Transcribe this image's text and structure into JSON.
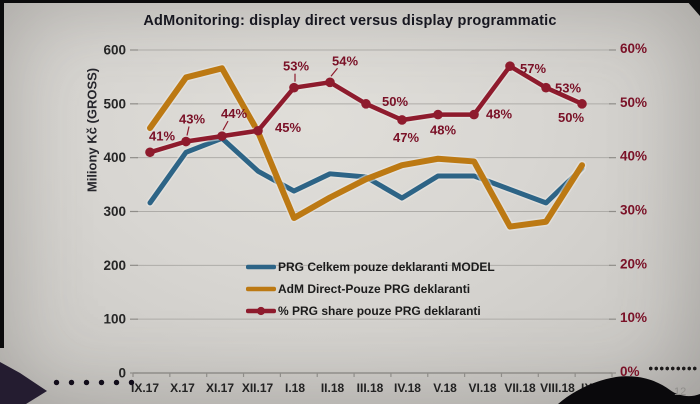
{
  "slide": {
    "title": "AdMonitoring: display direct versus display programmatic",
    "slide_number": "12"
  },
  "chart_data": {
    "type": "line",
    "title": "AdMonitoring: display direct versus display programmatic",
    "categories": [
      "IX.17",
      "X.17",
      "XI.17",
      "XII.17",
      "I.18",
      "II.18",
      "III.18",
      "IV.18",
      "V.18",
      "VI.18",
      "VII.18",
      "VIII.18",
      "IX.18"
    ],
    "grid": true,
    "legend_position": "inside-bottom-center",
    "y_axis_left": {
      "label": "Miliony Kč (GROSS)",
      "min": 0,
      "max": 600,
      "tick_step": 100,
      "ticks": [
        "0",
        "100",
        "200",
        "300",
        "400",
        "500",
        "600"
      ],
      "color": "#262626"
    },
    "y_axis_right": {
      "min": 0,
      "max": 60,
      "tick_step": 10,
      "ticks": [
        "0%",
        "10%",
        "20%",
        "30%",
        "40%",
        "50%",
        "60%"
      ],
      "color": "#7a1127"
    },
    "series": [
      {
        "name": "PRG Celkem pouze deklaranti MODEL",
        "axis": "left",
        "color": "#2d6486",
        "marker": false,
        "values": [
          316,
          410,
          436,
          375,
          338,
          370,
          364,
          325,
          366,
          366,
          341,
          316,
          380
        ]
      },
      {
        "name": "AdM Direct-Pouze PRG deklaranti",
        "axis": "left",
        "color": "#bc7913",
        "marker": false,
        "values": [
          455,
          549,
          566,
          448,
          288,
          326,
          360,
          386,
          398,
          393,
          272,
          281,
          386
        ]
      },
      {
        "name": "% PRG share pouze PRG deklaranti",
        "axis": "right",
        "color": "#8e1b2d",
        "marker": true,
        "values": [
          41,
          43,
          44,
          45,
          53,
          54,
          50,
          47,
          48,
          48,
          57,
          53,
          50
        ],
        "labels": [
          "41%",
          "43%",
          "44%",
          "45%",
          "53%",
          "54%",
          "50%",
          "47%",
          "48%",
          "48%",
          "57%",
          "53%",
          "50%"
        ]
      }
    ]
  }
}
